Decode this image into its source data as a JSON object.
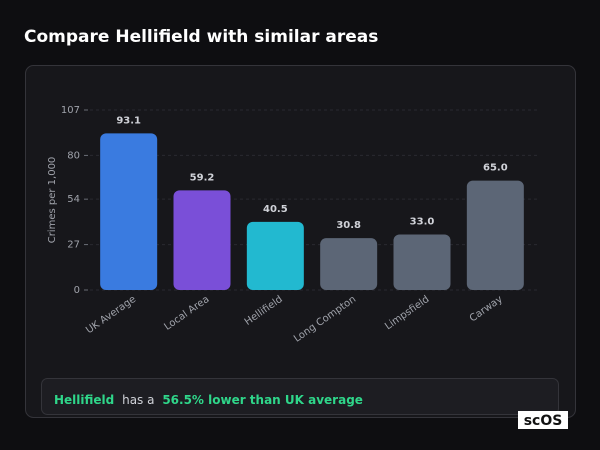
{
  "title": "Compare Hellifield with similar areas",
  "chart_data": {
    "type": "bar",
    "categories": [
      "UK Average",
      "Local Area",
      "Hellifield",
      "Long Compton",
      "Limpsfield",
      "Carway"
    ],
    "values": [
      93.1,
      59.2,
      40.5,
      30.8,
      33.0,
      65.0
    ],
    "value_labels": [
      "93.1",
      "59.2",
      "40.5",
      "30.8",
      "33.0",
      "65.0"
    ],
    "colors": [
      "#3a7be0",
      "#7a4fd8",
      "#22b9d0",
      "#5c6676",
      "#5c6676",
      "#5c6676"
    ],
    "ylabel": "Crimes per 1,000",
    "ylim": [
      0,
      107
    ],
    "yticks": [
      0,
      27,
      54,
      80,
      107
    ],
    "grid": true
  },
  "summary": {
    "area": "Hellifield",
    "text": "has a",
    "highlight": "56.5% lower than UK average"
  },
  "logo": "scOS"
}
